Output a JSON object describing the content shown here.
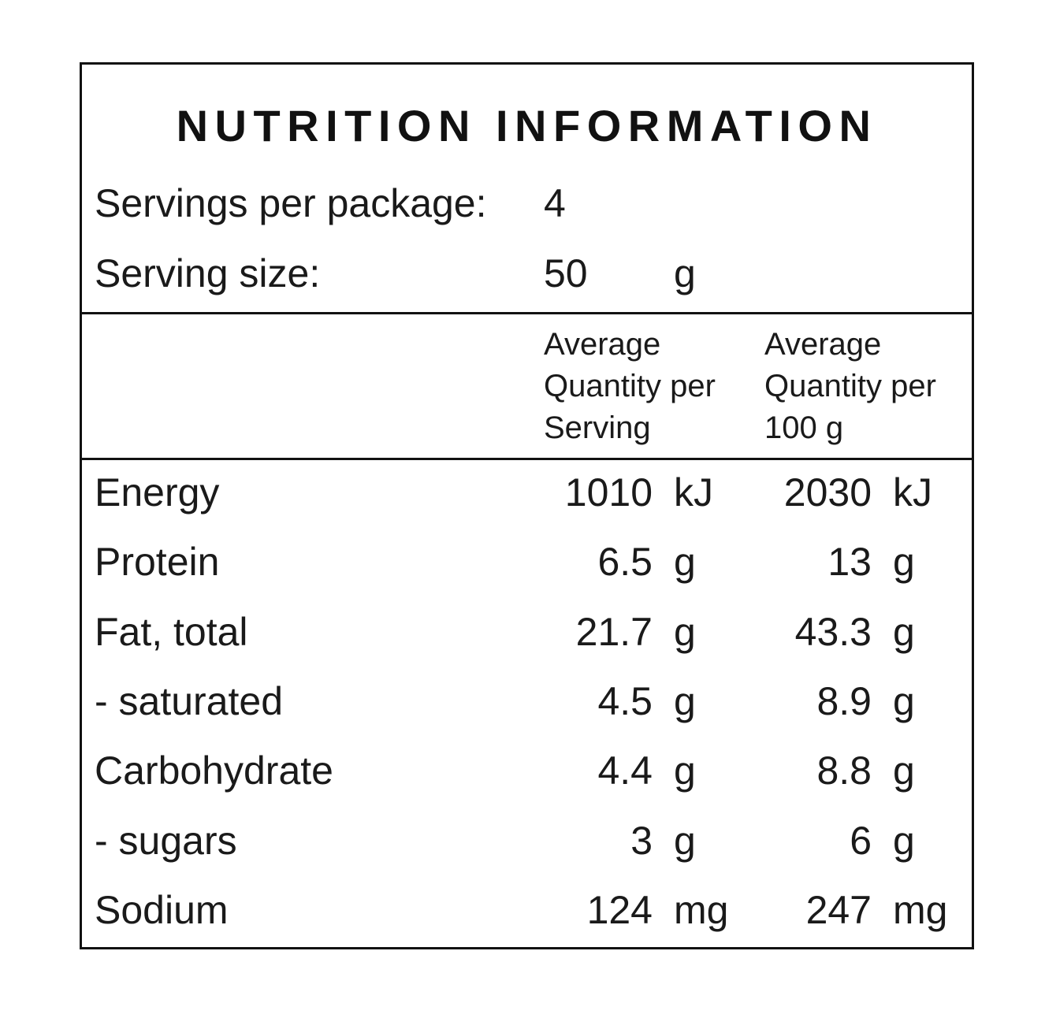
{
  "title": "NUTRITION INFORMATION",
  "servings": {
    "label": "Servings per package:",
    "value": "4"
  },
  "serving_size": {
    "label": "Serving size:",
    "value": "50",
    "unit": "g"
  },
  "table": {
    "headers": [
      [
        "Average",
        "Quantity per",
        "Serving"
      ],
      [
        "Average",
        "Quantity per",
        "100 g"
      ]
    ],
    "rows": [
      {
        "name": "Energy",
        "per_serving": "1010",
        "per_serving_unit": "kJ",
        "per_100g": "2030",
        "per_100g_unit": "kJ"
      },
      {
        "name": "Protein",
        "per_serving": "6.5",
        "per_serving_unit": "g",
        "per_100g": "13",
        "per_100g_unit": "g"
      },
      {
        "name": "Fat, total",
        "per_serving": "21.7",
        "per_serving_unit": "g",
        "per_100g": "43.3",
        "per_100g_unit": "g"
      },
      {
        "name": "- saturated",
        "per_serving": "4.5",
        "per_serving_unit": "g",
        "per_100g": "8.9",
        "per_100g_unit": "g"
      },
      {
        "name": "Carbohydrate",
        "per_serving": "4.4",
        "per_serving_unit": "g",
        "per_100g": "8.8",
        "per_100g_unit": "g"
      },
      {
        "name": "- sugars",
        "per_serving": "3",
        "per_serving_unit": "g",
        "per_100g": "6",
        "per_100g_unit": "g"
      },
      {
        "name": "Sodium",
        "per_serving": "124",
        "per_serving_unit": "mg",
        "per_100g": "247",
        "per_100g_unit": "mg"
      }
    ]
  }
}
